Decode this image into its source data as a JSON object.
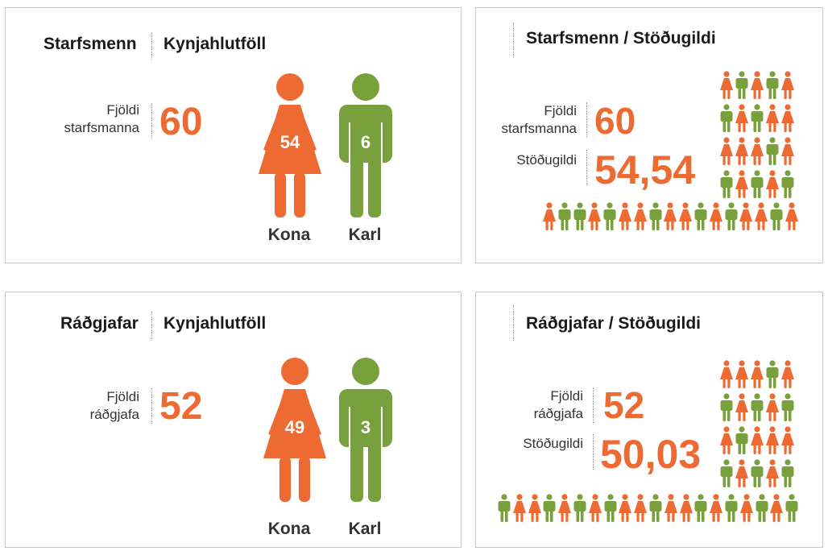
{
  "colors": {
    "female": "#ee6a33",
    "male": "#78a03c",
    "border": "#c8c8c8"
  },
  "panels": {
    "p1": {
      "left_title": "Starfsmenn",
      "right_title": "Kynjahlutföll",
      "count_label_1": "Fjöldi",
      "count_label_2": "starfsmanna",
      "count_value": "60",
      "female_count": "54",
      "male_count": "6",
      "female_label": "Kona",
      "male_label": "Karl"
    },
    "p2": {
      "title": "Starfsmenn / Stöðugildi",
      "count_label_1": "Fjöldi",
      "count_label_2": "starfsmanna",
      "count_value": "60",
      "fte_label": "Stöðugildi",
      "fte_value": "54,54",
      "icon_grid_rows": [
        [
          "f",
          "m",
          "f",
          "m",
          "f"
        ],
        [
          "m",
          "f",
          "m",
          "f",
          "f"
        ],
        [
          "f",
          "f",
          "f",
          "m",
          "f"
        ],
        [
          "m",
          "f",
          "m",
          "f",
          "m"
        ]
      ],
      "icon_bottom_row": [
        "f",
        "m",
        "m",
        "f",
        "m",
        "f",
        "f",
        "m",
        "f",
        "f",
        "m",
        "f",
        "m",
        "f",
        "f",
        "m",
        "f"
      ]
    },
    "p3": {
      "left_title": "Ráðgjafar",
      "right_title": "Kynjahlutföll",
      "count_label_1": "Fjöldi",
      "count_label_2": "ráðgjafa",
      "count_value": "52",
      "female_count": "49",
      "male_count": "3",
      "female_label": "Kona",
      "male_label": "Karl"
    },
    "p4": {
      "title": "Ráðgjafar / Stöðugildi",
      "count_label_1": "Fjöldi",
      "count_label_2": "ráðgjafa",
      "count_value": "52",
      "fte_label": "Stöðugildi",
      "fte_value": "50,03",
      "icon_grid_rows": [
        [
          "f",
          "f",
          "f",
          "m",
          "f"
        ],
        [
          "m",
          "f",
          "m",
          "f",
          "m"
        ],
        [
          "f",
          "m",
          "f",
          "f",
          "f"
        ],
        [
          "m",
          "f",
          "m",
          "f",
          "m"
        ]
      ],
      "icon_bottom_row": [
        "m",
        "f",
        "f",
        "m",
        "f",
        "m",
        "f",
        "m",
        "f",
        "f",
        "m",
        "f",
        "f",
        "m",
        "f",
        "m",
        "f",
        "m",
        "f",
        "m"
      ]
    }
  }
}
